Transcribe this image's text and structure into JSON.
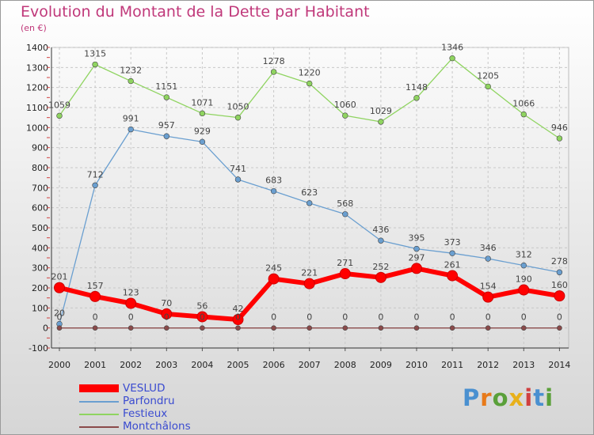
{
  "chart_data": {
    "type": "line",
    "title": "Evolution du Montant de la Dette par Habitant",
    "subtitle": "(en €)",
    "x": [
      "2000",
      "2001",
      "2002",
      "2003",
      "2004",
      "2005",
      "2006",
      "2007",
      "2008",
      "2009",
      "2010",
      "2011",
      "2012",
      "2013",
      "2014"
    ],
    "ylim": [
      -100,
      1400
    ],
    "yticks": [
      -100,
      0,
      100,
      200,
      300,
      400,
      500,
      600,
      700,
      800,
      900,
      1000,
      1100,
      1200,
      1300,
      1400
    ],
    "grid": true,
    "legend_position": "bottom-left",
    "series": [
      {
        "name": "VESLUD",
        "color": "#ff0000",
        "values": [
          201,
          157,
          123,
          70,
          56,
          42,
          245,
          221,
          271,
          252,
          297,
          261,
          154,
          190,
          160
        ]
      },
      {
        "name": "Parfondru",
        "color": "#6a9fd0",
        "values": [
          20,
          712,
          991,
          957,
          929,
          741,
          683,
          623,
          568,
          436,
          395,
          373,
          346,
          312,
          278
        ]
      },
      {
        "name": "Festieux",
        "color": "#8fd460",
        "values": [
          1059,
          1315,
          1232,
          1151,
          1071,
          1050,
          1278,
          1220,
          1060,
          1029,
          1148,
          1346,
          1205,
          1066,
          946
        ]
      },
      {
        "name": "Montchâlons",
        "color": "#8a4a4a",
        "values": [
          0,
          0,
          0,
          0,
          0,
          0,
          0,
          0,
          0,
          0,
          0,
          0,
          0,
          0,
          0
        ]
      }
    ]
  },
  "logo": {
    "text": "Proxiti",
    "letter_colors": [
      "#4a90d0",
      "#e87a1a",
      "#5aa03a",
      "#e8b01a",
      "#d04040",
      "#4a90d0",
      "#5aa03a"
    ]
  }
}
